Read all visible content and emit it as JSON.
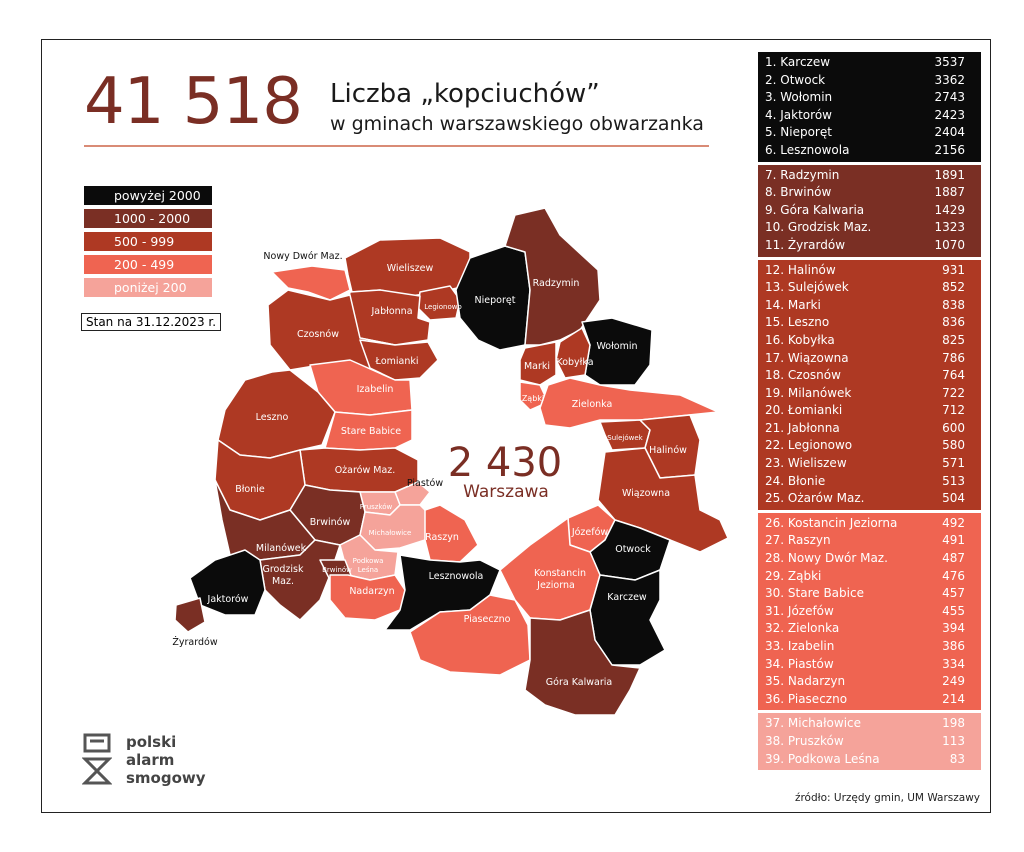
{
  "header": {
    "total": "41 518",
    "title": "Liczba „kopciuchów”",
    "subtitle": "w gminach warszawskiego obwarzanka"
  },
  "colors": {
    "above_2000": "#0b0b0b",
    "c1000_2000": "#7a2f24",
    "c500_999": "#ae3923",
    "c200_499": "#ef6451",
    "below_200": "#f5a39a"
  },
  "legend": [
    {
      "label": "powyżej 2000",
      "color": "#0b0b0b",
      "text_color": "#ffffff"
    },
    {
      "label": "1000 - 2000",
      "color": "#7a2f24",
      "text_color": "#ffffff"
    },
    {
      "label": "500 - 999",
      "color": "#ae3923",
      "text_color": "#ffffff"
    },
    {
      "label": "200 - 499",
      "color": "#ef6451",
      "text_color": "#ffffff"
    },
    {
      "label": "poniżej 200",
      "color": "#f5a39a",
      "text_color": "#ffffff"
    }
  ],
  "stan": "Stan na 31.12.2023 r.",
  "warszawa": {
    "value": "2 430",
    "label": "Warszawa"
  },
  "map_labels": {
    "nowy_dwor": "Nowy Dwór Maz.",
    "wieliszew": "Wieliszew",
    "nieporet": "Nieporęt",
    "radzymin": "Radzymin",
    "legionowo": "Legionowo",
    "jablonna": "Jabłonna",
    "czosnow": "Czosnów",
    "lomianki": "Łomianki",
    "wolomin": "Wołomin",
    "marki": "Marki",
    "kobylka": "Kobyłka",
    "zabki": "Ząbki",
    "zielonka": "Zielonka",
    "izabelin": "Izabelin",
    "leszno": "Leszno",
    "stare_babice": "Stare Babice",
    "sulejowek": "Sulejówek",
    "halinow": "Halinów",
    "ozarow": "Ożarów Maz.",
    "blonie": "Błonie",
    "piastow": "Piastów",
    "wiazowna": "Wiązowna",
    "pruszkow": "Pruszków",
    "brwinow": "Brwinów",
    "brwinow_small": "Brwinów",
    "michalowice": "Michałowice",
    "raszyn": "Raszyn",
    "jozefow": "Józefów",
    "otwock": "Otwock",
    "milanowek": "Milanówek",
    "grodzisk_1": "Grodzisk",
    "grodzisk_2": "Maz.",
    "podkowa_1": "Podkowa",
    "podkowa_2": "Leśna",
    "lesznowola": "Lesznowola",
    "konstancin_1": "Konstancin",
    "konstancin_2": "Jeziorna",
    "jaktorow": "Jaktorów",
    "nadarzyn": "Nadarzyn",
    "karczew": "Karczew",
    "piaseczno": "Piaseczno",
    "zyrardow": "Żyrardów",
    "gora_kalwaria": "Góra Kalwaria"
  },
  "ranking": [
    {
      "color": "#0b0b0b",
      "rows": [
        {
          "name": "1. Karczew",
          "value": "3537"
        },
        {
          "name": "2. Otwock",
          "value": "3362"
        },
        {
          "name": "3. Wołomin",
          "value": "2743"
        },
        {
          "name": "4. Jaktorów",
          "value": "2423"
        },
        {
          "name": "5. Nieporęt",
          "value": "2404"
        },
        {
          "name": "6. Lesznowola",
          "value": "2156"
        }
      ]
    },
    {
      "color": "#7a2f24",
      "rows": [
        {
          "name": "7. Radzymin",
          "value": "1891"
        },
        {
          "name": "8. Brwinów",
          "value": "1887"
        },
        {
          "name": "9. Góra Kalwaria",
          "value": "1429"
        },
        {
          "name": "10. Grodzisk Maz.",
          "value": "1323"
        },
        {
          "name": "11. Żyrardów",
          "value": "1070"
        }
      ]
    },
    {
      "color": "#ae3923",
      "rows": [
        {
          "name": "12. Halinów",
          "value": "931"
        },
        {
          "name": "13. Sulejówek",
          "value": "852"
        },
        {
          "name": "14. Marki",
          "value": "838"
        },
        {
          "name": "15. Leszno",
          "value": "836"
        },
        {
          "name": "16. Kobyłka",
          "value": "825"
        },
        {
          "name": "17. Wiązowna",
          "value": "786"
        },
        {
          "name": "18. Czosnów",
          "value": "764"
        },
        {
          "name": "19. Milanówek",
          "value": "722"
        },
        {
          "name": "20. Łomianki",
          "value": "712"
        },
        {
          "name": "21. Jabłonna",
          "value": "600"
        },
        {
          "name": "22. Legionowo",
          "value": "580"
        },
        {
          "name": "23. Wieliszew",
          "value": "571"
        },
        {
          "name": "24. Błonie",
          "value": "513"
        },
        {
          "name": "25. Ożarów Maz.",
          "value": "504"
        }
      ]
    },
    {
      "color": "#ef6451",
      "rows": [
        {
          "name": "26. Kostancin Jeziorna",
          "value": "492"
        },
        {
          "name": "27. Raszyn",
          "value": "491"
        },
        {
          "name": "28. Nowy Dwór Maz.",
          "value": "487"
        },
        {
          "name": "29. Ząbki",
          "value": "476"
        },
        {
          "name": "30. Stare Babice",
          "value": "457"
        },
        {
          "name": "31. Józefów",
          "value": "455"
        },
        {
          "name": "32. Zielonka",
          "value": "394"
        },
        {
          "name": "33. Izabelin",
          "value": "386"
        },
        {
          "name": "34. Piastów",
          "value": "334"
        },
        {
          "name": "35. Nadarzyn",
          "value": "249"
        },
        {
          "name": "36. Piaseczno",
          "value": "214"
        }
      ]
    },
    {
      "color": "#f5a39a",
      "rows": [
        {
          "name": "37. Michałowice",
          "value": "198"
        },
        {
          "name": "38. Pruszków",
          "value": "113"
        },
        {
          "name": "39. Podkowa Leśna",
          "value": "83"
        }
      ]
    }
  ],
  "logo": {
    "line1": "polski",
    "line2": "alarm",
    "line3": "smogowy"
  },
  "source": "źródło: Urzędy gmin, UM Warszawy"
}
